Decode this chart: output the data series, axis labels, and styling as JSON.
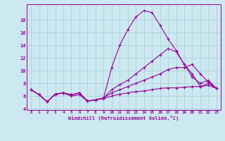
{
  "bg_color": "#cce8f0",
  "line_color": "#990099",
  "grid_color": "#aaccd8",
  "xlabel": "Windchill (Refroidissement éolien,°C)",
  "x": [
    0,
    1,
    2,
    3,
    4,
    5,
    6,
    7,
    8,
    9,
    10,
    11,
    12,
    13,
    14,
    15,
    16,
    17,
    18,
    19,
    20,
    21,
    22,
    23
  ],
  "series": [
    [
      7.0,
      6.2,
      5.1,
      6.3,
      6.5,
      6.2,
      6.5,
      5.2,
      5.4,
      5.7,
      10.5,
      14.0,
      16.5,
      18.5,
      19.5,
      19.2,
      17.2,
      15.0,
      13.2,
      11.0,
      9.5,
      7.5,
      8.0,
      7.2
    ],
    [
      7.0,
      6.2,
      5.1,
      6.3,
      6.5,
      6.2,
      6.5,
      5.2,
      5.4,
      5.7,
      7.0,
      7.8,
      8.5,
      9.5,
      10.5,
      11.5,
      12.5,
      13.5,
      13.0,
      11.0,
      9.0,
      8.0,
      8.5,
      7.2
    ],
    [
      7.0,
      6.2,
      5.1,
      6.3,
      6.5,
      6.2,
      6.5,
      5.2,
      5.4,
      5.7,
      6.5,
      7.0,
      7.5,
      8.0,
      8.5,
      9.0,
      9.5,
      10.2,
      10.5,
      10.5,
      11.0,
      9.5,
      8.2,
      7.2
    ],
    [
      7.0,
      6.2,
      5.1,
      6.3,
      6.5,
      6.0,
      6.2,
      5.2,
      5.4,
      5.6,
      6.0,
      6.3,
      6.5,
      6.7,
      6.8,
      7.0,
      7.2,
      7.3,
      7.3,
      7.4,
      7.5,
      7.5,
      7.7,
      7.2
    ]
  ],
  "ylim": [
    3.8,
    20.5
  ],
  "yticks": [
    4,
    6,
    8,
    10,
    12,
    14,
    16,
    18
  ],
  "xlim": [
    -0.5,
    23.5
  ],
  "figsize": [
    3.2,
    2.0
  ],
  "dpi": 100
}
